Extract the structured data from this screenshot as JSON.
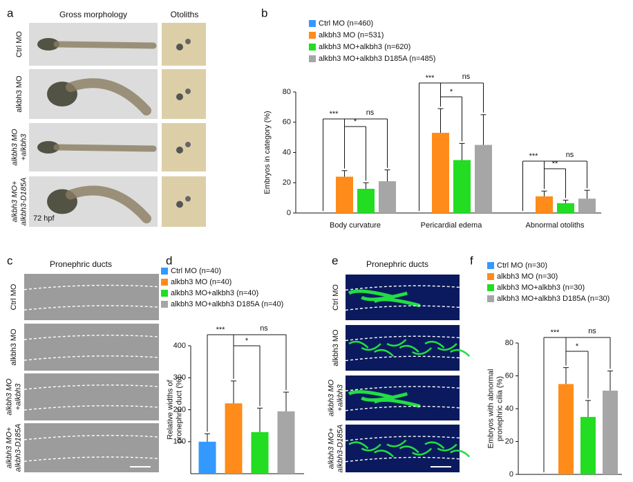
{
  "panels": {
    "a": {
      "letter": "a",
      "headers": [
        "Gross morphology",
        "Otoliths"
      ],
      "rows": [
        "Ctrl MO",
        "alkbh3 MO",
        [
          "alkbh3 MO",
          "+alkbh3"
        ],
        [
          "alkbh3 MO+",
          "alkbh3-D185A"
        ]
      ],
      "stage": "72 hpf"
    },
    "c": {
      "letter": "c",
      "header": "Pronephric ducts",
      "rows": [
        "Ctrl MO",
        "alkbh3 MO",
        [
          "alkbh3 MO",
          "+alkbh3"
        ],
        [
          "alkbh3 MO+",
          "alkbh3-D185A"
        ]
      ]
    },
    "e": {
      "letter": "e",
      "header": "Pronephric ducts",
      "rows": [
        "Ctrl MO",
        "alkbh3 MO",
        [
          "alkbh3 MO",
          "+alkbh3"
        ],
        [
          "alkbh3 MO+",
          "alkbh3-D185A"
        ]
      ]
    }
  },
  "chart_data": [
    {
      "letter": "b",
      "type": "bar",
      "ylabel": "Embryos in category (%)",
      "categories": [
        "Body curvature",
        "Pericardial edema",
        "Abnormal otoliths"
      ],
      "series": [
        {
          "name": "Ctrl MO (n=460)",
          "color": "#3399ff",
          "values": [
            0,
            0,
            0
          ],
          "errors": [
            null,
            null,
            null
          ]
        },
        {
          "name": "alkbh3 MO (n=531)",
          "color": "#ff8c1a",
          "values": [
            24,
            53,
            11
          ],
          "errors": [
            4,
            16,
            3.5
          ]
        },
        {
          "name": "alkbh3 MO+alkbh3  (n=620)",
          "color": "#22dd22",
          "values": [
            16,
            35,
            6.5
          ],
          "errors": [
            4,
            11,
            2
          ]
        },
        {
          "name": "alkbh3 MO+alkbh3 D185A  (n=485)",
          "color": "#a6a6a6",
          "values": [
            21,
            45,
            9.5
          ],
          "errors": [
            7.5,
            20,
            5.5
          ]
        }
      ],
      "ylim": [
        0,
        80
      ],
      "yticks": [
        0,
        20,
        40,
        60,
        80
      ],
      "annotations": [
        [
          "***",
          "*",
          "ns"
        ],
        [
          "***",
          "*",
          "ns"
        ],
        [
          "***",
          "**",
          "ns"
        ]
      ]
    },
    {
      "letter": "d",
      "type": "bar",
      "ylabel": [
        "Relative widths of",
        "pronephric duct (%)"
      ],
      "categories": [
        null
      ],
      "series": [
        {
          "name": "Ctrl MO (n=40)",
          "color": "#3399ff",
          "values": [
            100
          ],
          "errors": [
            25
          ]
        },
        {
          "name": "alkbh3 MO (n=40)",
          "color": "#ff8c1a",
          "values": [
            220
          ],
          "errors": [
            70
          ]
        },
        {
          "name": "alkbh3 MO+alkbh3  (n=40)",
          "color": "#22dd22",
          "values": [
            130
          ],
          "errors": [
            75
          ]
        },
        {
          "name": "alkbh3 MO+alkbh3 D185A  (n=40)",
          "color": "#a6a6a6",
          "values": [
            195
          ],
          "errors": [
            60
          ]
        }
      ],
      "ylim": [
        0,
        400
      ],
      "yticks": [
        100,
        200,
        300,
        400
      ],
      "annotations": [
        [
          "***",
          "*",
          "ns"
        ]
      ]
    },
    {
      "letter": "f",
      "type": "bar",
      "ylabel": [
        "Embryos with abnormal",
        "pronephric cilia (%)"
      ],
      "categories": [
        null
      ],
      "series": [
        {
          "name": "Ctrl MO (n=30)",
          "color": "#3399ff",
          "values": [
            0
          ],
          "errors": [
            null
          ]
        },
        {
          "name": "alkbh3 MO (n=30)",
          "color": "#ff8c1a",
          "values": [
            55
          ],
          "errors": [
            10
          ]
        },
        {
          "name": "alkbh3 MO+alkbh3  (n=30)",
          "color": "#22dd22",
          "values": [
            35
          ],
          "errors": [
            10
          ]
        },
        {
          "name": "alkbh3 MO+alkbh3 D185A  (n=30)",
          "color": "#a6a6a6",
          "values": [
            51
          ],
          "errors": [
            12
          ]
        }
      ],
      "ylim": [
        0,
        80
      ],
      "yticks": [
        0,
        20,
        40,
        60,
        80
      ],
      "annotations": [
        [
          "***",
          "*",
          "ns"
        ]
      ]
    }
  ]
}
